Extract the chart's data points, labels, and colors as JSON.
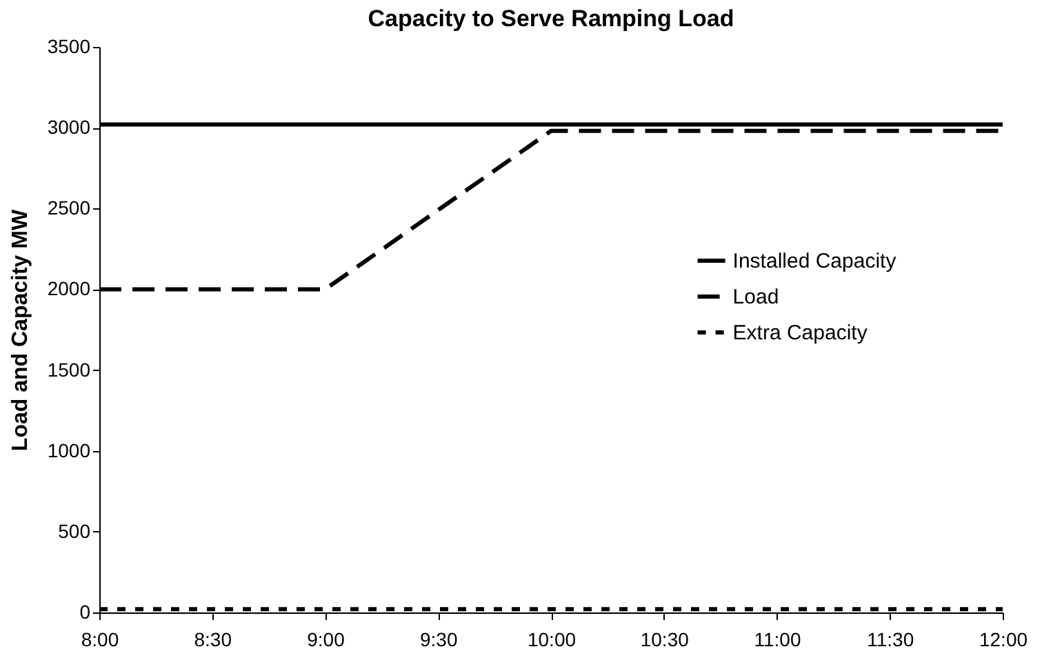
{
  "chart_data": {
    "type": "line",
    "title": "Capacity to Serve Ramping Load",
    "ylabel": "Load and Capacity MW",
    "x": [
      8,
      9,
      10,
      12
    ],
    "series": [
      {
        "name": "Installed Capacity",
        "color": "#000000",
        "line_style": "solid",
        "values": [
          3020,
          3020,
          3020,
          3020
        ]
      },
      {
        "name": "Load",
        "color": "#000000",
        "line_style": "dashed",
        "values": [
          2000,
          2000,
          2980,
          2980
        ]
      },
      {
        "name": "Extra Capacity",
        "color": "#000000",
        "line_style": "dotted",
        "values": [
          20,
          20,
          20,
          20
        ]
      }
    ],
    "xlim": [
      8,
      12
    ],
    "xticks": [
      {
        "value": 8,
        "label": "8:00"
      },
      {
        "value": 8.5,
        "label": "8:30"
      },
      {
        "value": 9,
        "label": "9:00"
      },
      {
        "value": 9.5,
        "label": "9:30"
      },
      {
        "value": 10,
        "label": "10:00"
      },
      {
        "value": 10.5,
        "label": "10:30"
      },
      {
        "value": 11,
        "label": "11:00"
      },
      {
        "value": 11.5,
        "label": "11:30"
      },
      {
        "value": 12,
        "label": "12:00"
      }
    ],
    "ylim": [
      0,
      3500
    ],
    "yticks": [
      0,
      500,
      1000,
      1500,
      2000,
      2500,
      3000,
      3500
    ],
    "grid": false,
    "legend": "right",
    "marker": "none"
  }
}
